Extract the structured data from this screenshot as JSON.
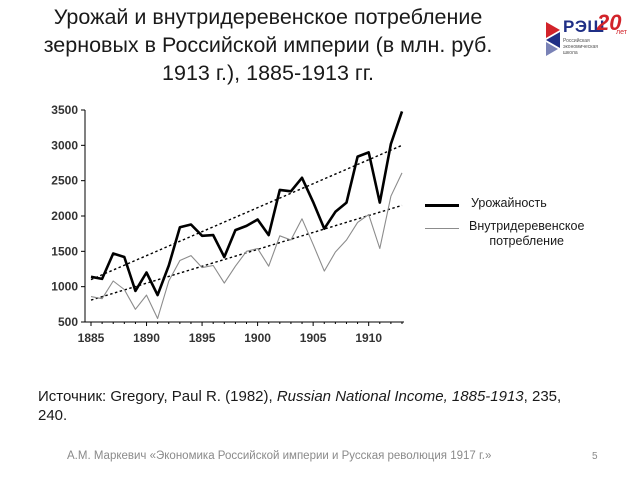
{
  "title_lines": [
    "Урожай и внутридеревенское потребление",
    "зерновых в Российской империи (в млн. руб.",
    "1913 г.), 1885-1913 гг."
  ],
  "logo": {
    "name": "РЭШ",
    "years": "20",
    "years_suffix": "лет",
    "subtitle_lines": [
      "Российская",
      "экономическая",
      "школа"
    ],
    "colors": {
      "blue": "#1f2f86",
      "red": "#d2232a"
    }
  },
  "chart_data": {
    "type": "line",
    "x_ticks": [
      1885,
      1890,
      1895,
      1900,
      1905,
      1910
    ],
    "y_ticks": [
      500,
      1000,
      1500,
      2000,
      2500,
      3000,
      3500
    ],
    "xlim": [
      1885,
      1914
    ],
    "ylim": [
      500,
      3600
    ],
    "grid": false,
    "legend_position": "right",
    "x": [
      1885,
      1886,
      1887,
      1888,
      1889,
      1890,
      1891,
      1892,
      1893,
      1894,
      1895,
      1896,
      1897,
      1898,
      1899,
      1900,
      1901,
      1902,
      1903,
      1904,
      1905,
      1906,
      1907,
      1908,
      1909,
      1910,
      1911,
      1912,
      1913
    ],
    "series": [
      {
        "name": "Урожайность",
        "color": "#000000",
        "style": "thick",
        "values": [
          1140,
          1110,
          1470,
          1420,
          940,
          1200,
          880,
          1300,
          1840,
          1880,
          1720,
          1730,
          1420,
          1800,
          1860,
          1950,
          1730,
          2370,
          2350,
          2540,
          2200,
          1820,
          2060,
          2190,
          2840,
          2900,
          2190,
          3020,
          3480
        ]
      },
      {
        "name": "Внутридеревенское потребление",
        "color": "#8c8c8c",
        "style": "thin",
        "values": [
          860,
          830,
          1080,
          960,
          680,
          880,
          550,
          1080,
          1370,
          1440,
          1270,
          1300,
          1050,
          1290,
          1500,
          1540,
          1290,
          1720,
          1660,
          1960,
          1600,
          1220,
          1490,
          1660,
          1910,
          2020,
          1540,
          2280,
          2610
        ]
      }
    ],
    "trendlines": [
      {
        "of": "Урожайность",
        "from": [
          1885,
          1100
        ],
        "to": [
          1913,
          3000
        ]
      },
      {
        "of": "Внутридеревенское потребление",
        "from": [
          1885,
          810
        ],
        "to": [
          1913,
          2150
        ]
      }
    ]
  },
  "legend": {
    "harvest_label": "Урожайность",
    "consumption_label_lines": [
      "Внутридеревенское",
      "потребление"
    ]
  },
  "source": {
    "prefix": "Источник: Gregory, Paul R. (1982), ",
    "title": "Russian National Income, 1885-1913",
    "suffix": ", 235,",
    "line2": "240."
  },
  "footer": {
    "text": "А.М. Маркевич «Экономика Российской империи и Русская революция 1917 г.»",
    "page": "5"
  }
}
